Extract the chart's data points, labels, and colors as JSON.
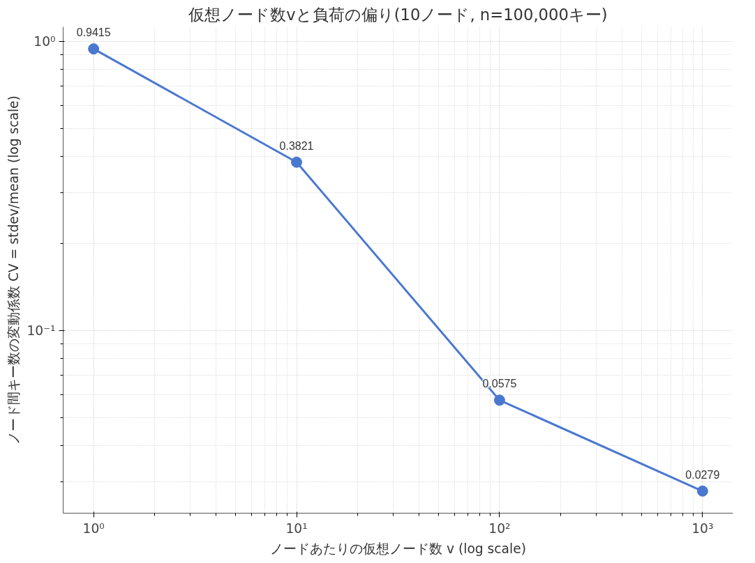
{
  "chart_data": {
    "type": "line",
    "title": "仮想ノード数vと負荷の偏り(10ノード, n=100,000キー)",
    "xlabel": "ノードあたりの仮想ノード数 v (log scale)",
    "ylabel": "ノード間キー数の変動係数 CV = stdev/mean (log scale)",
    "x": [
      1,
      10,
      100,
      1000
    ],
    "series": [
      {
        "color": "#4a78d0",
        "values": [
          0.9415,
          0.3821,
          0.0575,
          0.0279
        ]
      }
    ],
    "data_labels": true,
    "marker": "circle",
    "line_style": "solid",
    "log": "xy",
    "grid": true,
    "xlim": [
      0.708,
      1413
    ],
    "ylim": [
      0.0234,
      1.122
    ],
    "xticks": [
      {
        "value": 1,
        "label": "10⁰"
      },
      {
        "value": 10,
        "label": "10¹"
      },
      {
        "value": 100,
        "label": "10²"
      },
      {
        "value": 1000,
        "label": "10³"
      },
      {
        "value": 2,
        "label": null
      },
      {
        "value": 3,
        "label": null
      },
      {
        "value": 4,
        "label": null
      },
      {
        "value": 5,
        "label": null
      },
      {
        "value": 6,
        "label": null
      },
      {
        "value": 7,
        "label": null
      },
      {
        "value": 8,
        "label": null
      },
      {
        "value": 9,
        "label": null
      },
      {
        "value": 20,
        "label": null
      },
      {
        "value": 30,
        "label": null
      },
      {
        "value": 40,
        "label": null
      },
      {
        "value": 50,
        "label": null
      },
      {
        "value": 60,
        "label": null
      },
      {
        "value": 70,
        "label": null
      },
      {
        "value": 80,
        "label": null
      },
      {
        "value": 90,
        "label": null
      },
      {
        "value": 200,
        "label": null
      },
      {
        "value": 300,
        "label": null
      },
      {
        "value": 400,
        "label": null
      },
      {
        "value": 500,
        "label": null
      },
      {
        "value": 600,
        "label": null
      },
      {
        "value": 700,
        "label": null
      },
      {
        "value": 800,
        "label": null
      },
      {
        "value": 900,
        "label": null
      }
    ],
    "yticks": [
      {
        "value": 0.1,
        "label": "10⁻¹"
      },
      {
        "value": 1,
        "label": "10⁰"
      },
      {
        "value": 0.03,
        "label": null
      },
      {
        "value": 0.04,
        "label": null
      },
      {
        "value": 0.05,
        "label": null
      },
      {
        "value": 0.06,
        "label": null
      },
      {
        "value": 0.07,
        "label": null
      },
      {
        "value": 0.08,
        "label": null
      },
      {
        "value": 0.09,
        "label": null
      },
      {
        "value": 0.2,
        "label": null
      },
      {
        "value": 0.3,
        "label": null
      },
      {
        "value": 0.4,
        "label": null
      },
      {
        "value": 0.5,
        "label": null
      },
      {
        "value": 0.6,
        "label": null
      },
      {
        "value": 0.7,
        "label": null
      },
      {
        "value": 0.8,
        "label": null
      },
      {
        "value": 0.9,
        "label": null
      }
    ]
  }
}
